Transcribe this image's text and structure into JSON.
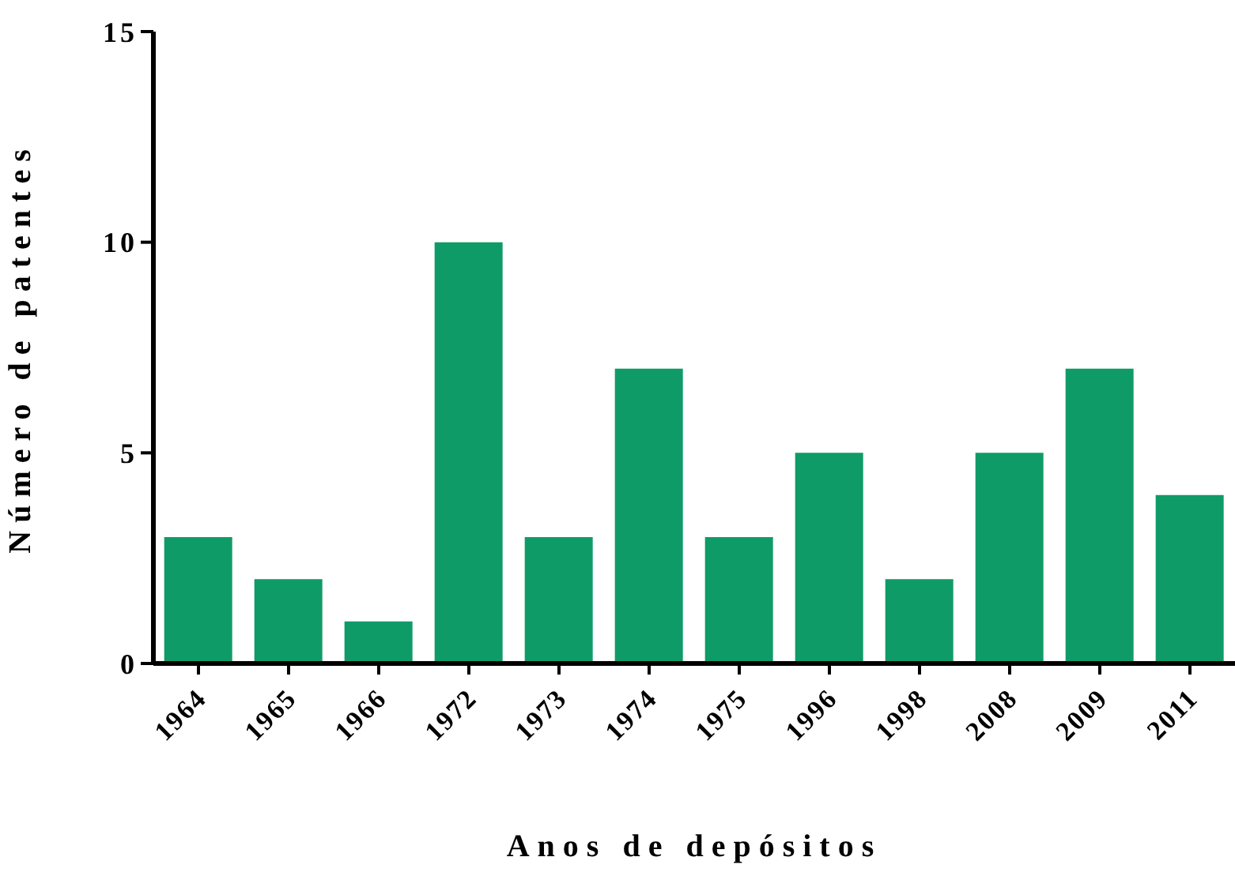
{
  "chart_data": {
    "type": "bar",
    "xlabel": "Anos de depósitos",
    "ylabel": "Número de patentes",
    "categories": [
      "1964",
      "1965",
      "1966",
      "1972",
      "1973",
      "1974",
      "1975",
      "1996",
      "1998",
      "2008",
      "2009",
      "2011"
    ],
    "values": [
      3,
      2,
      1,
      10,
      3,
      7,
      3,
      5,
      2,
      5,
      7,
      4
    ],
    "color": "#0f9b67",
    "ylim": [
      0,
      15
    ],
    "yticks": [
      0,
      5,
      10,
      15
    ],
    "grid": false,
    "legend": false
  }
}
